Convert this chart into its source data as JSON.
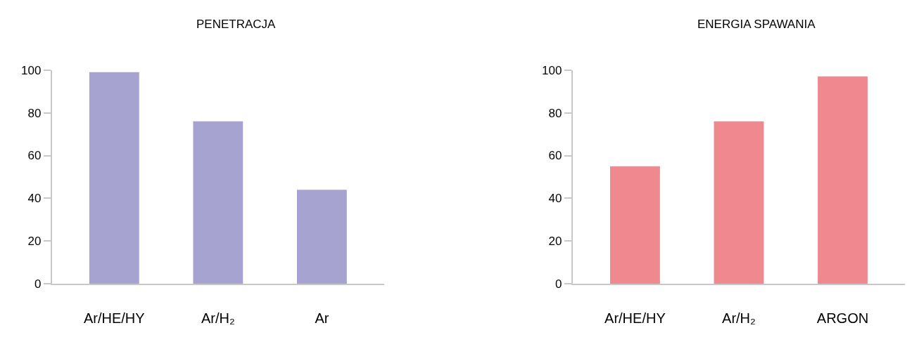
{
  "chart_data": [
    {
      "type": "bar",
      "title": "PENETRACJA",
      "categories": [
        "Ar/HE/HY",
        "Ar/H₂",
        "Ar"
      ],
      "values": [
        99,
        76,
        44
      ],
      "color": "#a6a3d1",
      "ylim": [
        0,
        100
      ],
      "yticks": [
        0,
        20,
        40,
        60,
        80,
        100
      ]
    },
    {
      "type": "bar",
      "title": "ENERGIA SPAWANIA",
      "categories": [
        "Ar/HE/HY",
        "Ar/H₂",
        "ARGON"
      ],
      "values": [
        55,
        76,
        97
      ],
      "color": "#f08890",
      "ylim": [
        0,
        100
      ],
      "yticks": [
        0,
        20,
        40,
        60,
        80,
        100
      ]
    }
  ]
}
